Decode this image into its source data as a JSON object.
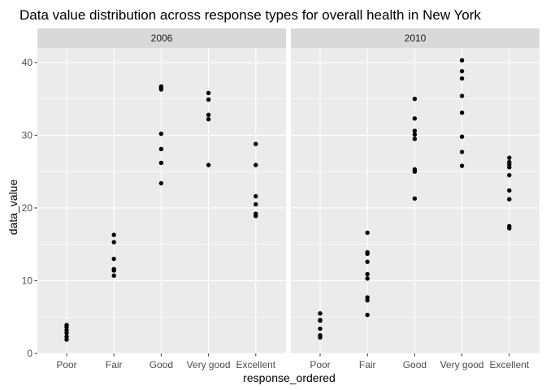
{
  "chart_data": {
    "type": "scatter",
    "title": "Data value distribution across response types for overall health in New York",
    "xlabel": "response_ordered",
    "ylabel": "data_value",
    "categories": [
      "Poor",
      "Fair",
      "Good",
      "Very good",
      "Excellent"
    ],
    "ylim": [
      0,
      42
    ],
    "yticks": [
      0,
      10,
      20,
      30,
      40
    ],
    "grid": true,
    "colors": {
      "panel_background": "#EBEBEB",
      "strip_background": "#D9D9D9",
      "grid": "#FFFFFF",
      "points": "#000000"
    },
    "facets": [
      {
        "label": "2006",
        "points": {
          "Poor": [
            1.9,
            2.3,
            2.8,
            3.2,
            3.6,
            3.9
          ],
          "Fair": [
            10.7,
            11.4,
            11.6,
            13.0,
            15.3,
            16.3
          ],
          "Good": [
            23.4,
            26.2,
            28.1,
            30.2,
            36.3,
            36.5,
            36.7
          ],
          "Very good": [
            25.9,
            32.2,
            32.8,
            34.9,
            35.8
          ],
          "Excellent": [
            18.9,
            19.2,
            20.5,
            21.6,
            25.9,
            28.8
          ]
        }
      },
      {
        "label": "2010",
        "points": {
          "Poor": [
            2.2,
            2.5,
            3.4,
            4.5,
            4.6,
            5.5
          ],
          "Fair": [
            5.3,
            7.3,
            7.7,
            10.3,
            10.9,
            12.6,
            13.7,
            13.9,
            16.6
          ],
          "Good": [
            21.3,
            25.0,
            25.3,
            29.5,
            30.1,
            30.6,
            32.3,
            35.0
          ],
          "Very good": [
            25.8,
            27.7,
            29.8,
            33.1,
            35.4,
            37.8,
            38.8,
            40.3
          ],
          "Excellent": [
            17.2,
            17.5,
            21.2,
            22.4,
            24.5,
            25.6,
            26.0,
            26.3,
            26.9
          ]
        }
      }
    ]
  }
}
